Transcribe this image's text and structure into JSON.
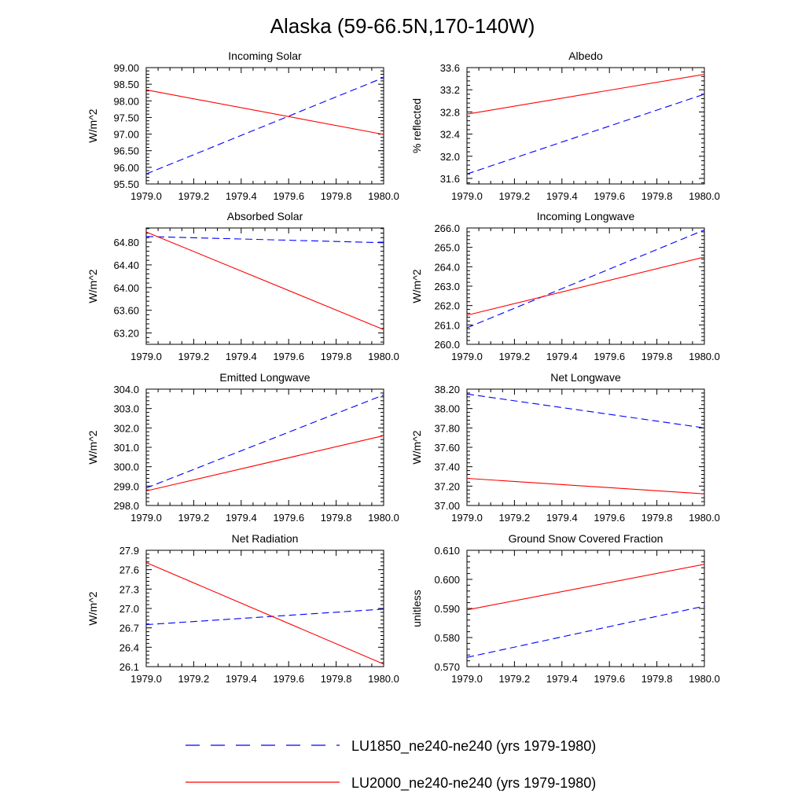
{
  "figure": {
    "title": "Alaska (59-66.5N,170-140W)"
  },
  "legend": [
    {
      "label": "LU1850_ne240-ne240 (yrs 1979-1980)",
      "color": "#0000ff",
      "dash": "dashed"
    },
    {
      "label": "LU2000_ne240-ne240 (yrs 1979-1980)",
      "color": "#ff0000",
      "dash": "solid"
    }
  ],
  "chart_data": [
    {
      "type": "line",
      "title": "Incoming Solar",
      "ylabel": "W/m^2",
      "xlim": [
        1979.0,
        1980.0
      ],
      "ylim": [
        95.5,
        99.0
      ],
      "xticks": [
        "1979.0",
        "1979.2",
        "1979.4",
        "1979.6",
        "1979.8",
        "1980.0"
      ],
      "yticks": [
        "95.50",
        "96.00",
        "96.50",
        "97.00",
        "97.50",
        "98.00",
        "98.50",
        "99.00"
      ],
      "series": [
        {
          "name": "LU1850_ne240-ne240 (yrs 1979-1980)",
          "x": [
            1979.0,
            1980.0
          ],
          "y": [
            95.8,
            98.7
          ]
        },
        {
          "name": "LU2000_ne240-ne240 (yrs 1979-1980)",
          "x": [
            1979.0,
            1980.0
          ],
          "y": [
            98.33,
            96.99
          ]
        }
      ]
    },
    {
      "type": "line",
      "title": "Albedo",
      "ylabel": "% reflected",
      "xlim": [
        1979.0,
        1980.0
      ],
      "ylim": [
        31.5,
        33.6
      ],
      "xticks": [
        "1979.0",
        "1979.2",
        "1979.4",
        "1979.6",
        "1979.8",
        "1980.0"
      ],
      "yticks": [
        "31.6",
        "32.0",
        "32.4",
        "32.8",
        "33.2",
        "33.6"
      ],
      "series": [
        {
          "name": "LU1850_ne240-ne240 (yrs 1979-1980)",
          "x": [
            1979.0,
            1980.0
          ],
          "y": [
            31.68,
            33.12
          ]
        },
        {
          "name": "LU2000_ne240-ne240 (yrs 1979-1980)",
          "x": [
            1979.0,
            1980.0
          ],
          "y": [
            32.76,
            33.48
          ]
        }
      ]
    },
    {
      "type": "line",
      "title": "Absorbed Solar",
      "ylabel": "W/m^2",
      "xlim": [
        1979.0,
        1980.0
      ],
      "ylim": [
        63.0,
        65.05
      ],
      "xticks": [
        "1979.0",
        "1979.2",
        "1979.4",
        "1979.6",
        "1979.8",
        "1980.0"
      ],
      "yticks": [
        "63.20",
        "63.60",
        "64.00",
        "64.40",
        "64.80"
      ],
      "series": [
        {
          "name": "LU1850_ne240-ne240 (yrs 1979-1980)",
          "x": [
            1979.0,
            1980.0
          ],
          "y": [
            64.9,
            64.79
          ]
        },
        {
          "name": "LU2000_ne240-ne240 (yrs 1979-1980)",
          "x": [
            1979.0,
            1980.0
          ],
          "y": [
            64.98,
            63.26
          ]
        }
      ]
    },
    {
      "type": "line",
      "title": "Incoming Longwave",
      "ylabel": "W/m^2",
      "xlim": [
        1979.0,
        1980.0
      ],
      "ylim": [
        260.0,
        266.0
      ],
      "xticks": [
        "1979.0",
        "1979.2",
        "1979.4",
        "1979.6",
        "1979.8",
        "1980.0"
      ],
      "yticks": [
        "260.0",
        "261.0",
        "262.0",
        "263.0",
        "264.0",
        "265.0",
        "266.0"
      ],
      "series": [
        {
          "name": "LU1850_ne240-ne240 (yrs 1979-1980)",
          "x": [
            1979.0,
            1980.0
          ],
          "y": [
            260.85,
            265.9
          ]
        },
        {
          "name": "LU2000_ne240-ne240 (yrs 1979-1980)",
          "x": [
            1979.0,
            1980.0
          ],
          "y": [
            261.5,
            264.5
          ]
        }
      ]
    },
    {
      "type": "line",
      "title": "Emitted Longwave",
      "ylabel": "W/m^2",
      "xlim": [
        1979.0,
        1980.0
      ],
      "ylim": [
        298.0,
        304.0
      ],
      "xticks": [
        "1979.0",
        "1979.2",
        "1979.4",
        "1979.6",
        "1979.8",
        "1980.0"
      ],
      "yticks": [
        "298.0",
        "299.0",
        "300.0",
        "301.0",
        "302.0",
        "303.0",
        "304.0"
      ],
      "series": [
        {
          "name": "LU1850_ne240-ne240 (yrs 1979-1980)",
          "x": [
            1979.0,
            1980.0
          ],
          "y": [
            298.9,
            303.7
          ]
        },
        {
          "name": "LU2000_ne240-ne240 (yrs 1979-1980)",
          "x": [
            1979.0,
            1980.0
          ],
          "y": [
            298.75,
            301.6
          ]
        }
      ]
    },
    {
      "type": "line",
      "title": "Net Longwave",
      "ylabel": "W/m^2",
      "xlim": [
        1979.0,
        1980.0
      ],
      "ylim": [
        37.0,
        38.2
      ],
      "xticks": [
        "1979.0",
        "1979.2",
        "1979.4",
        "1979.6",
        "1979.8",
        "1980.0"
      ],
      "yticks": [
        "37.00",
        "37.20",
        "37.40",
        "37.60",
        "37.80",
        "38.00",
        "38.20"
      ],
      "series": [
        {
          "name": "LU1850_ne240-ne240 (yrs 1979-1980)",
          "x": [
            1979.0,
            1980.0
          ],
          "y": [
            38.15,
            37.8
          ]
        },
        {
          "name": "LU2000_ne240-ne240 (yrs 1979-1980)",
          "x": [
            1979.0,
            1980.0
          ],
          "y": [
            37.28,
            37.12
          ]
        }
      ]
    },
    {
      "type": "line",
      "title": "Net Radiation",
      "ylabel": "W/m^2",
      "xlim": [
        1979.0,
        1980.0
      ],
      "ylim": [
        26.1,
        27.9
      ],
      "xticks": [
        "1979.0",
        "1979.2",
        "1979.4",
        "1979.6",
        "1979.8",
        "1980.0"
      ],
      "yticks": [
        "26.1",
        "26.4",
        "26.7",
        "27.0",
        "27.3",
        "27.6",
        "27.9"
      ],
      "series": [
        {
          "name": "LU1850_ne240-ne240 (yrs 1979-1980)",
          "x": [
            1979.0,
            1980.0
          ],
          "y": [
            26.75,
            26.99
          ]
        },
        {
          "name": "LU2000_ne240-ne240 (yrs 1979-1980)",
          "x": [
            1979.0,
            1980.0
          ],
          "y": [
            27.71,
            26.14
          ]
        }
      ]
    },
    {
      "type": "line",
      "title": "Ground Snow Covered Fraction",
      "ylabel": "unitless",
      "xlim": [
        1979.0,
        1980.0
      ],
      "ylim": [
        0.57,
        0.61
      ],
      "xticks": [
        "1979.0",
        "1979.2",
        "1979.4",
        "1979.6",
        "1979.8",
        "1980.0"
      ],
      "yticks": [
        "0.570",
        "0.580",
        "0.590",
        "0.600",
        "0.610"
      ],
      "series": [
        {
          "name": "LU1850_ne240-ne240 (yrs 1979-1980)",
          "x": [
            1979.0,
            1980.0
          ],
          "y": [
            0.5732,
            0.5908
          ]
        },
        {
          "name": "LU2000_ne240-ne240 (yrs 1979-1980)",
          "x": [
            1979.0,
            1980.0
          ],
          "y": [
            0.5895,
            0.6052
          ]
        }
      ]
    }
  ]
}
